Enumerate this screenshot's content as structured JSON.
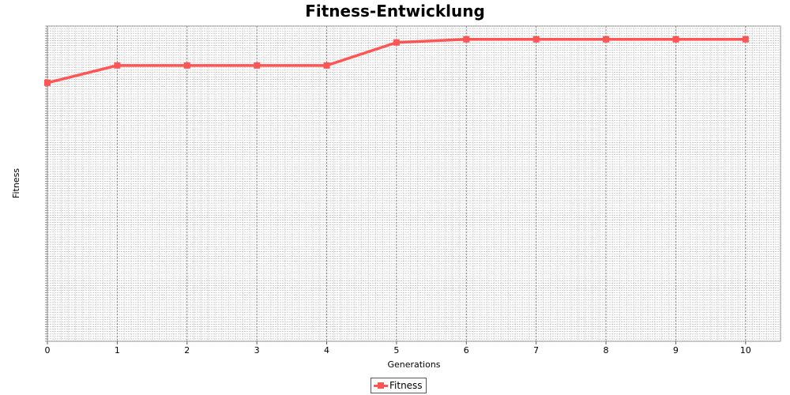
{
  "chart_data": {
    "type": "line",
    "title": "Fitness-Entwicklung",
    "xlabel": "Generations",
    "ylabel": "Fitness",
    "x": [
      0,
      1,
      2,
      3,
      4,
      5,
      6,
      7,
      8,
      9,
      10
    ],
    "xlim": [
      0,
      10.5
    ],
    "ylim": [
      0,
      1
    ],
    "grid": true,
    "legend_position": "bottom-center",
    "series": [
      {
        "name": "Fitness",
        "color": "#ff5555",
        "values": [
          0.82,
          0.875,
          0.875,
          0.875,
          0.875,
          0.948,
          0.958,
          0.958,
          0.958,
          0.958,
          0.958
        ]
      }
    ]
  }
}
